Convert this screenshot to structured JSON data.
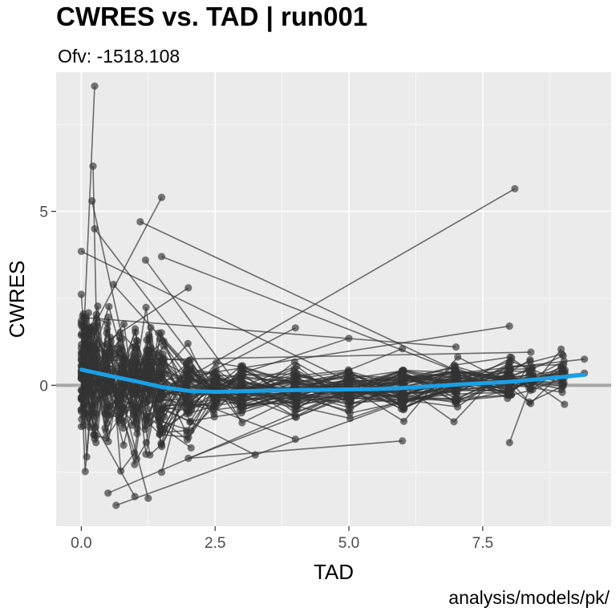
{
  "chart_data": {
    "type": "scatter",
    "title": "CWRES vs. TAD | run001",
    "subtitle": "Ofv: -1518.108",
    "caption": "analysis/models/pk/",
    "xlabel": "TAD",
    "ylabel": "CWRES",
    "xlim": [
      -0.47,
      9.9
    ],
    "ylim": [
      -4.05,
      9.0
    ],
    "x_ticks": [
      0.0,
      2.5,
      5.0,
      7.5
    ],
    "x_tick_labels": [
      "0.0",
      "2.5",
      "5.0",
      "7.5"
    ],
    "y_ticks": [
      0,
      5
    ],
    "y_tick_labels": [
      "0",
      "5"
    ],
    "grid": true,
    "reference_line_y": 0,
    "smooth": {
      "x": [
        0.0,
        0.5,
        1.0,
        1.5,
        2.0,
        2.5,
        3.0,
        3.5,
        4.0,
        4.5,
        5.0,
        5.5,
        6.0,
        6.5,
        7.0,
        7.5,
        8.0,
        8.5,
        9.0,
        9.4
      ],
      "y": [
        0.45,
        0.28,
        0.12,
        -0.05,
        -0.16,
        -0.19,
        -0.17,
        -0.15,
        -0.14,
        -0.13,
        -0.12,
        -0.11,
        -0.08,
        -0.03,
        0.02,
        0.06,
        0.1,
        0.17,
        0.24,
        0.3
      ]
    },
    "highlight_points": [
      {
        "x": 0.25,
        "y": 8.6
      },
      {
        "x": 0.22,
        "y": 6.3
      },
      {
        "x": 0.2,
        "y": 5.3
      },
      {
        "x": 0.25,
        "y": 4.5
      },
      {
        "x": 0.0,
        "y": 3.85
      },
      {
        "x": 1.1,
        "y": 4.7
      },
      {
        "x": 1.5,
        "y": 5.4
      },
      {
        "x": 8.1,
        "y": 5.65
      },
      {
        "x": 0.6,
        "y": 2.9
      },
      {
        "x": 1.2,
        "y": 3.6
      },
      {
        "x": 1.5,
        "y": 3.7
      },
      {
        "x": 2.0,
        "y": 2.8
      },
      {
        "x": 4.0,
        "y": 1.65
      },
      {
        "x": 5.0,
        "y": 1.35
      },
      {
        "x": 6.0,
        "y": 1.05
      },
      {
        "x": 7.0,
        "y": 1.1
      },
      {
        "x": 8.0,
        "y": 1.7
      },
      {
        "x": 8.4,
        "y": 0.95
      },
      {
        "x": 9.4,
        "y": 0.75
      },
      {
        "x": 9.4,
        "y": 0.35
      },
      {
        "x": 0.5,
        "y": -3.1
      },
      {
        "x": 0.65,
        "y": -3.45
      },
      {
        "x": 1.0,
        "y": -3.2
      },
      {
        "x": 1.25,
        "y": -3.25
      },
      {
        "x": 1.5,
        "y": -2.5
      },
      {
        "x": 2.0,
        "y": -2.1
      },
      {
        "x": 3.25,
        "y": -2.0
      },
      {
        "x": 4.0,
        "y": -1.55
      },
      {
        "x": 6.0,
        "y": -1.6
      },
      {
        "x": 8.0,
        "y": -1.65
      },
      {
        "x": 0.0,
        "y": -0.7
      },
      {
        "x": 2.05,
        "y": -1.8
      }
    ]
  },
  "colors": {
    "panel": "#ebebeb",
    "grid": "#ffffff",
    "points": "#333333",
    "reference_line": "#a6a6a6",
    "smooth": "#1aa0e6"
  }
}
